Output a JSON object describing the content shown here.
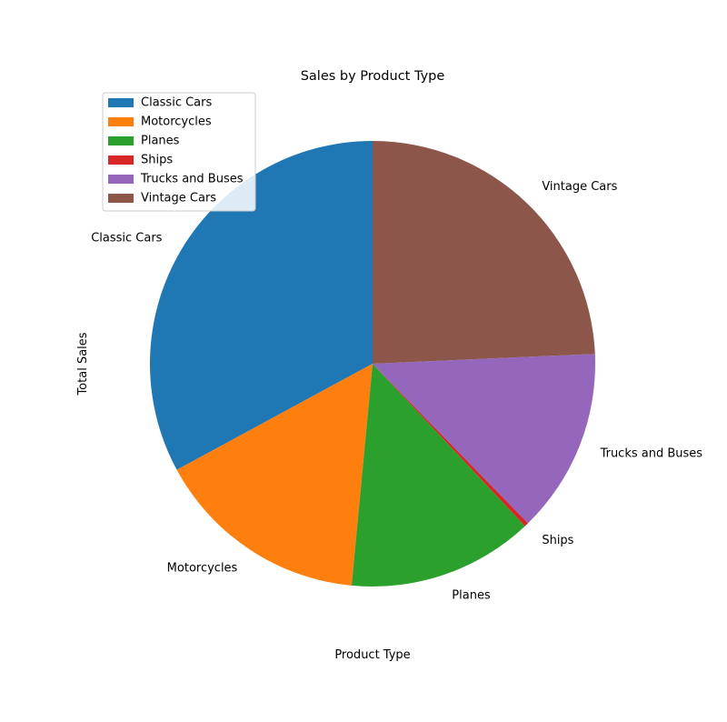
{
  "chart_data": {
    "type": "pie",
    "title": "Sales by Product Type",
    "xlabel": "Product Type",
    "ylabel": "Total Sales",
    "legend_placement": "upper-left",
    "start_angle_deg": 90,
    "direction": "counterclockwise",
    "slices": [
      {
        "label": "Classic Cars",
        "value": 32.9,
        "color": "#1f77b4"
      },
      {
        "label": "Motorcycles",
        "value": 15.6,
        "color": "#ff7f0e"
      },
      {
        "label": "Planes",
        "value": 13.5,
        "color": "#2ca02c"
      },
      {
        "label": "Ships",
        "value": 0.3,
        "color": "#d62728"
      },
      {
        "label": "Trucks and Buses",
        "value": 13.4,
        "color": "#9467bd"
      },
      {
        "label": "Vintage Cars",
        "value": 24.3,
        "color": "#8c564b"
      }
    ]
  }
}
